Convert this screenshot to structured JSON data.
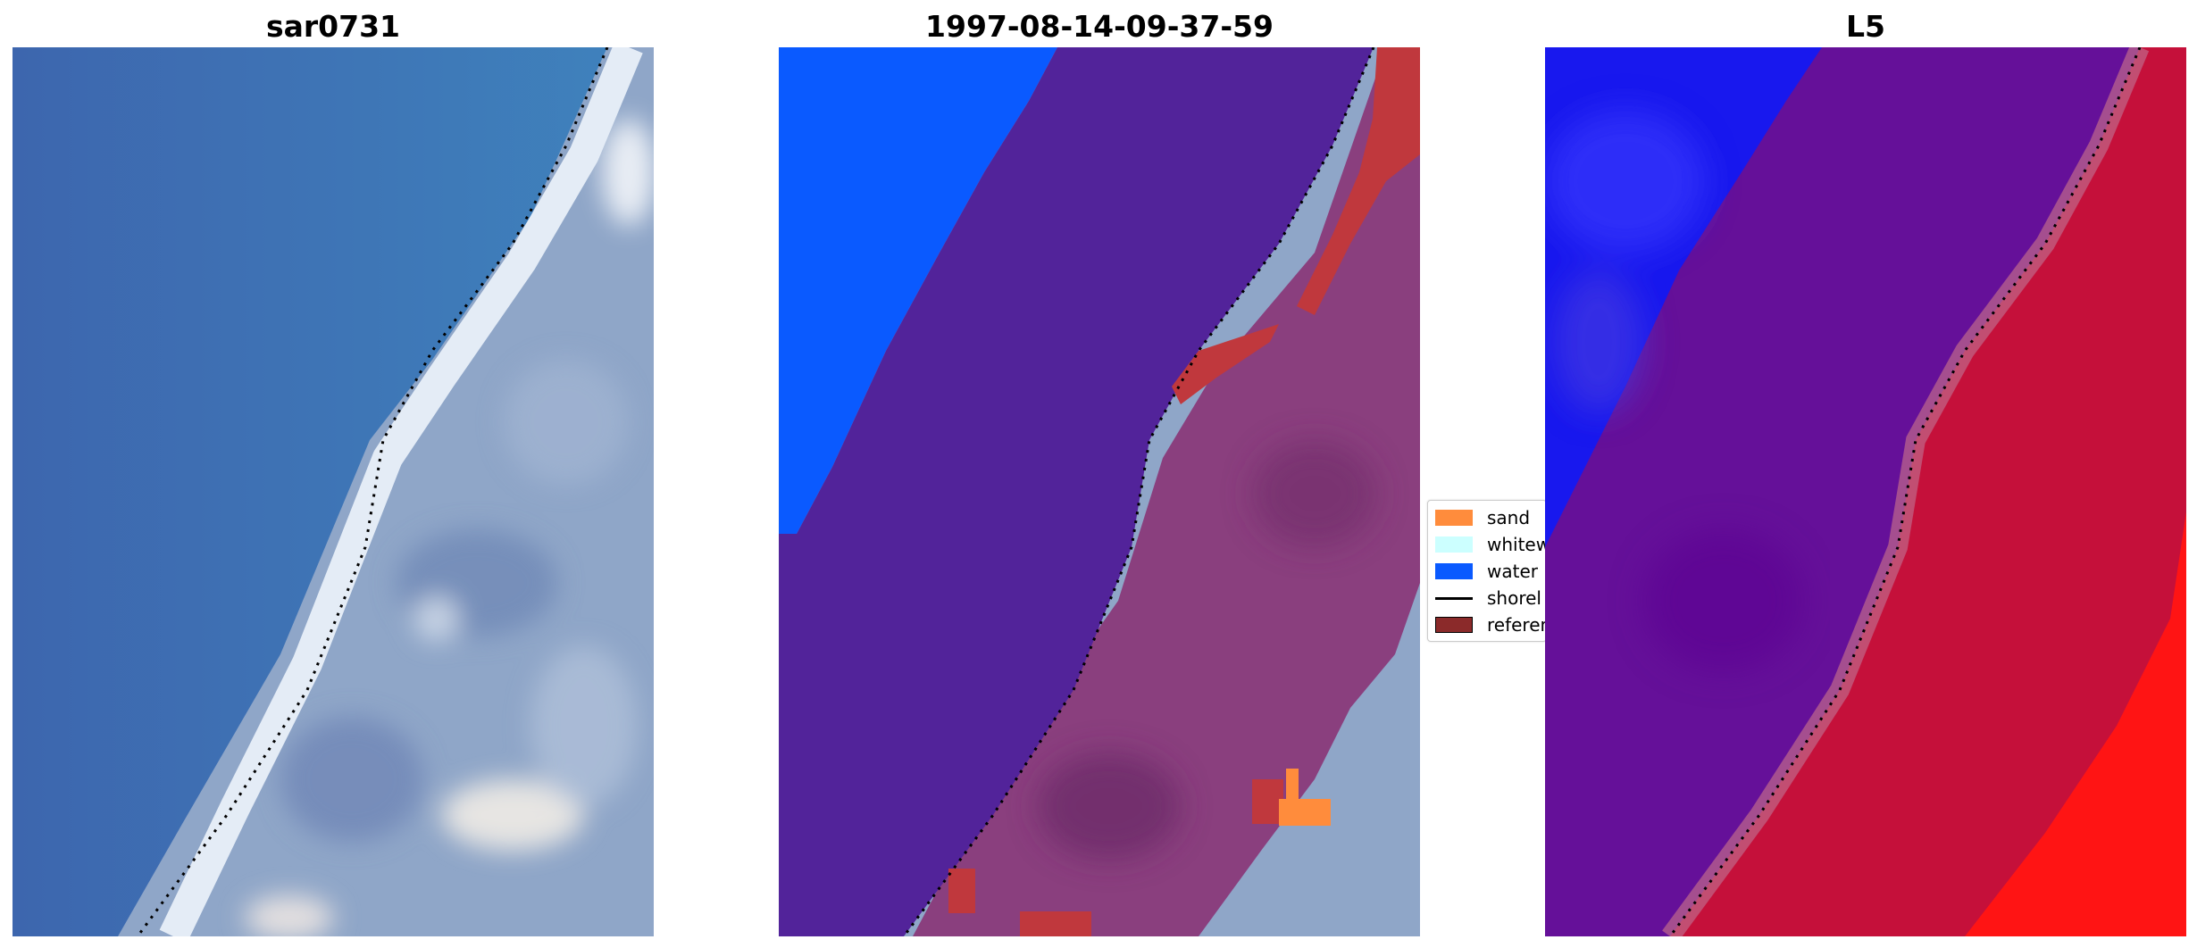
{
  "panels": [
    {
      "title": "sar0731"
    },
    {
      "title": "1997-08-14-09-37-59"
    },
    {
      "title": "L5"
    }
  ],
  "legend": {
    "items": [
      {
        "label": "sand",
        "color": "#ff8c3c",
        "kind": "patch"
      },
      {
        "label": "whitew",
        "color": "#ccffff",
        "kind": "patch"
      },
      {
        "label": "water",
        "color": "#0a5aff",
        "kind": "patch"
      },
      {
        "label": "shorel",
        "color": "#000000",
        "kind": "line"
      },
      {
        "label": "referen",
        "color": "#8b2a2a",
        "kind": "patch"
      }
    ]
  },
  "colors": {
    "rgb_water": "#3e74b2",
    "rgb_foam": "#e4ecf6",
    "rgb_land": "#8fa6c8",
    "class_water": "#0a5aff",
    "class_overlay": "#52239a",
    "class_land": "#8a3f7e",
    "class_reference": "#c0383d",
    "class_sand": "#ff8c3c",
    "index_water_blue": "#1818ee",
    "index_purple": "#651099",
    "index_red": "#c5103a",
    "index_bright_red": "#ff1414"
  }
}
